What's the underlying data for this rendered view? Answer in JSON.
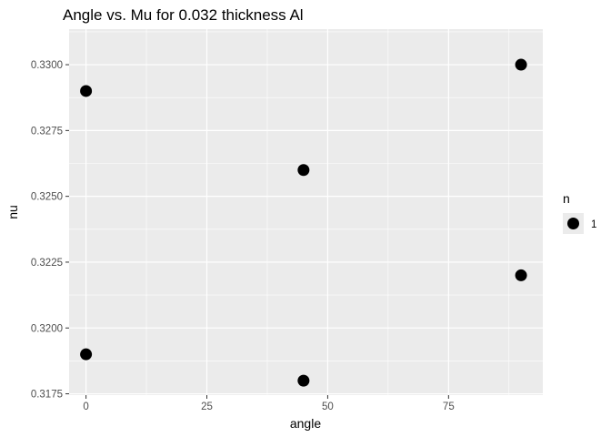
{
  "chart_data": {
    "type": "scatter",
    "title": "Angle vs. Mu for 0.032 thickness Al",
    "xlabel": "angle",
    "ylabel": "nu",
    "xlim": [
      -3.5,
      94.5
    ],
    "ylim": [
      0.31745,
      0.33135
    ],
    "x_ticks": [
      0,
      25,
      50,
      75
    ],
    "x_tick_labels": [
      "0",
      "25",
      "50",
      "75"
    ],
    "y_ticks": [
      0.3175,
      0.32,
      0.3225,
      0.325,
      0.3275,
      0.33
    ],
    "y_tick_labels": [
      "0.3175",
      "0.3200",
      "0.3225",
      "0.3250",
      "0.3275",
      "0.3300"
    ],
    "grid": true,
    "legend": {
      "title": "n",
      "placement": "right",
      "entries": [
        "1"
      ]
    },
    "colors": {
      "panel": "#ebebeb",
      "grid": "#ffffff",
      "point": "#000000"
    },
    "series": [
      {
        "points": [
          {
            "x": 0,
            "y": 0.329
          },
          {
            "x": 0,
            "y": 0.319
          },
          {
            "x": 45,
            "y": 0.326
          },
          {
            "x": 45,
            "y": 0.318
          },
          {
            "x": 90,
            "y": 0.33
          },
          {
            "x": 90,
            "y": 0.322
          }
        ]
      }
    ]
  }
}
